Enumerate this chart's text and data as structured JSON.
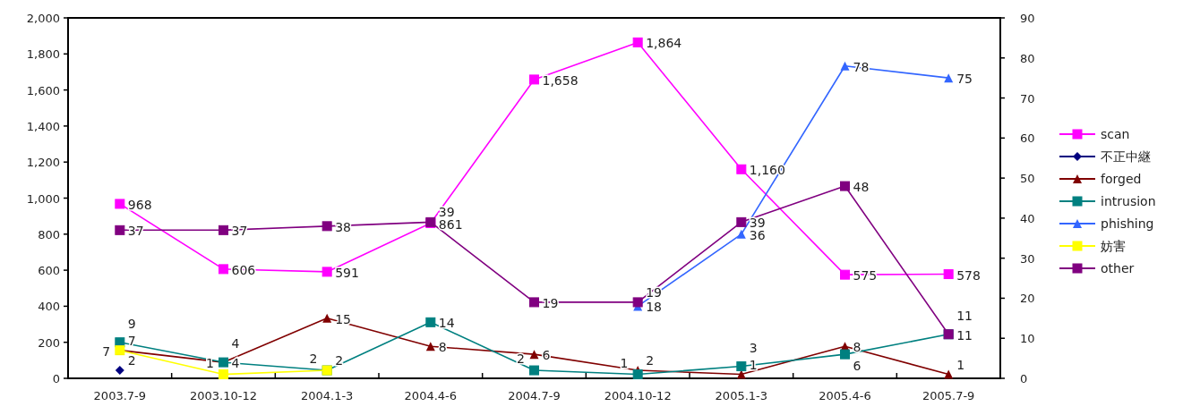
{
  "chart_data": {
    "type": "line",
    "categories": [
      "2003.7-9",
      "2003.10-12",
      "2004.1-3",
      "2004.4-6",
      "2004.7-9",
      "2004.10-12",
      "2005.1-3",
      "2005.4-6",
      "2005.7-9"
    ],
    "ylim": [
      0,
      2000
    ],
    "yticks": [
      0,
      200,
      400,
      600,
      800,
      {
        "value": 1000,
        "label": "1,000"
      },
      {
        "value": 1200,
        "label": "1,200"
      },
      {
        "value": 1400,
        "label": "1,400"
      },
      {
        "value": 1600,
        "label": "1,600"
      },
      {
        "value": 1800,
        "label": "1,800"
      },
      {
        "value": 2000,
        "label": "2,000"
      }
    ],
    "y2lim": [
      0,
      90
    ],
    "y2ticks": [
      0,
      10,
      20,
      30,
      40,
      50,
      60,
      70,
      80,
      90
    ],
    "legend": "right",
    "grid": false,
    "series": [
      {
        "name": "scan",
        "color": "#ff00ff",
        "marker": "square",
        "values": [
          968,
          606,
          591,
          861,
          1658,
          1864,
          1160,
          575,
          578
        ],
        "value_labels": [
          "968",
          "606",
          "591",
          "861",
          "1,658",
          "1,864",
          "1,160",
          "575",
          "578"
        ]
      },
      {
        "name": "不正中継",
        "color": "#000080",
        "marker": "diamond",
        "axis": "y2",
        "values": [
          2,
          null,
          null,
          null,
          null,
          null,
          null,
          null,
          null
        ],
        "value_labels": [
          "2",
          null,
          null,
          null,
          null,
          null,
          null,
          null,
          null
        ]
      },
      {
        "name": "forged",
        "color": "#800000",
        "marker": "triangle",
        "axis": "y2",
        "values": [
          7,
          4,
          15,
          8,
          6,
          2,
          1,
          8,
          1
        ],
        "value_labels": [
          "7",
          "4",
          "15",
          "8",
          "6",
          "2",
          "1",
          "8",
          "1"
        ]
      },
      {
        "name": "intrusion",
        "color": "#008080",
        "marker": "square",
        "axis": "y2",
        "values": [
          9,
          4,
          2,
          14,
          2,
          1,
          3,
          6,
          11
        ],
        "value_labels": [
          "9",
          "4",
          "2",
          "14",
          "2",
          "1",
          "3",
          "6",
          "11"
        ]
      },
      {
        "name": "phishing",
        "color": "#3366ff",
        "marker": "triangle",
        "axis": "y2",
        "values": [
          null,
          null,
          null,
          null,
          null,
          18,
          36,
          78,
          75
        ],
        "value_labels": [
          null,
          null,
          null,
          null,
          null,
          "18",
          "36",
          "78",
          "75"
        ]
      },
      {
        "name": "妨害",
        "color": "#ffff00",
        "marker": "square",
        "axis": "y2",
        "values": [
          7,
          1,
          2,
          null,
          null,
          null,
          null,
          null,
          null
        ],
        "value_labels": [
          "7",
          "1",
          "2",
          null,
          null,
          null,
          null,
          null,
          null
        ]
      },
      {
        "name": "other",
        "color": "#800080",
        "marker": "square",
        "axis": "y2",
        "values": [
          37,
          37,
          38,
          39,
          19,
          19,
          39,
          48,
          11
        ],
        "value_labels": [
          "37",
          "37",
          "38",
          "39",
          "19",
          "19",
          "39",
          "48",
          "11"
        ]
      }
    ]
  }
}
